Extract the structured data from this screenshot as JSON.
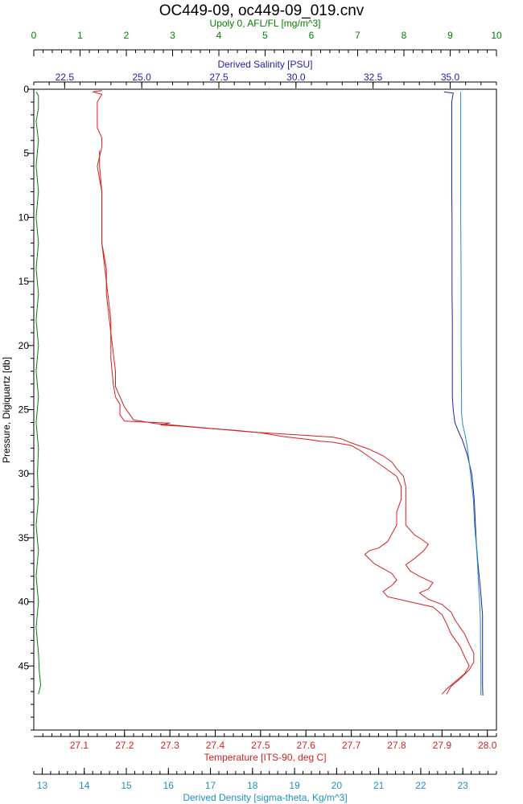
{
  "chart_data": {
    "type": "line",
    "title": "OC449-09, oc449-09_019.cnv",
    "grid": false,
    "legend": "none",
    "y_axis": {
      "label": "Pressure, Digiquartz [db]",
      "range": [
        0,
        50
      ],
      "inverted": true,
      "ticks": [
        "0",
        "5",
        "10",
        "15",
        "20",
        "25",
        "30",
        "35",
        "40",
        "45"
      ],
      "tick_values": [
        0,
        5,
        10,
        15,
        20,
        25,
        30,
        35,
        40,
        45
      ],
      "color": "#000000"
    },
    "x_axes": [
      {
        "id": "fluor",
        "label": "Upoly 0, AFL/FL [mg/m^3]",
        "position": "top-1",
        "range": [
          0,
          10
        ],
        "ticks": [
          "0",
          "1",
          "2",
          "3",
          "4",
          "5",
          "6",
          "7",
          "8",
          "9",
          "10"
        ],
        "tick_values": [
          0,
          1,
          2,
          3,
          4,
          5,
          6,
          7,
          8,
          9,
          10
        ],
        "color": "#008000"
      },
      {
        "id": "salinity",
        "label": "Derived Salinity [PSU]",
        "position": "top-2",
        "range": [
          21.5,
          36.5
        ],
        "ticks": [
          "22.5",
          "25.0",
          "27.5",
          "30.0",
          "32.5",
          "35.0"
        ],
        "tick_values": [
          22.5,
          25.0,
          27.5,
          30.0,
          32.5,
          35.0
        ],
        "color": "#1f1fa8"
      },
      {
        "id": "temperature",
        "label": "Temperature [ITS-90, deg C]",
        "position": "bottom-1",
        "range": [
          27.0,
          28.02
        ],
        "ticks": [
          "27.1",
          "27.2",
          "27.3",
          "27.4",
          "27.5",
          "27.6",
          "27.7",
          "27.8",
          "27.9",
          "28.0"
        ],
        "tick_values": [
          27.1,
          27.2,
          27.3,
          27.4,
          27.5,
          27.6,
          27.7,
          27.8,
          27.9,
          28.0
        ],
        "color": "#d42020"
      },
      {
        "id": "density",
        "label": "Derived Density [sigma-theta, Kg/m^3]",
        "position": "bottom-2",
        "range": [
          12.8,
          23.8
        ],
        "ticks": [
          "13",
          "14",
          "15",
          "16",
          "17",
          "18",
          "19",
          "20",
          "21",
          "22",
          "23"
        ],
        "tick_values": [
          13,
          14,
          15,
          16,
          17,
          18,
          19,
          20,
          21,
          22,
          23
        ],
        "color": "#2090c0"
      }
    ],
    "series": [
      {
        "axis": "temperature",
        "color": "#d42020",
        "points": [
          [
            27.15,
            0.1
          ],
          [
            27.13,
            0.2
          ],
          [
            27.15,
            0.4
          ],
          [
            27.14,
            1
          ],
          [
            27.14,
            2
          ],
          [
            27.14,
            3
          ],
          [
            27.15,
            3.8
          ],
          [
            27.15,
            4.5
          ],
          [
            27.14,
            6
          ],
          [
            27.15,
            8
          ],
          [
            27.15,
            10
          ],
          [
            27.15,
            12
          ],
          [
            27.16,
            15
          ],
          [
            27.17,
            18
          ],
          [
            27.17,
            21
          ],
          [
            27.175,
            23
          ],
          [
            27.18,
            24
          ],
          [
            27.19,
            24.6
          ],
          [
            27.19,
            25.4
          ],
          [
            27.2,
            25.9
          ],
          [
            27.23,
            25.95
          ],
          [
            27.26,
            26.0
          ],
          [
            27.3,
            26.05
          ],
          [
            27.28,
            26.2
          ],
          [
            27.33,
            26.3
          ],
          [
            27.38,
            26.45
          ],
          [
            27.44,
            26.6
          ],
          [
            27.5,
            26.8
          ],
          [
            27.55,
            27.1
          ],
          [
            27.6,
            27.3
          ],
          [
            27.63,
            27.45
          ],
          [
            27.66,
            27.55
          ],
          [
            27.7,
            27.8
          ],
          [
            27.72,
            28.2
          ],
          [
            27.74,
            28.7
          ],
          [
            27.76,
            29.2
          ],
          [
            27.78,
            29.7
          ],
          [
            27.8,
            30.2
          ],
          [
            27.81,
            31
          ],
          [
            27.81,
            32
          ],
          [
            27.8,
            33
          ],
          [
            27.8,
            34
          ],
          [
            27.78,
            35.3
          ],
          [
            27.76,
            35.8
          ],
          [
            27.74,
            36
          ],
          [
            27.73,
            36.3
          ],
          [
            27.75,
            37
          ],
          [
            27.79,
            37.8
          ],
          [
            27.8,
            38.3
          ],
          [
            27.79,
            38.7
          ],
          [
            27.77,
            39.2
          ],
          [
            27.78,
            39.6
          ],
          [
            27.83,
            40
          ],
          [
            27.88,
            40.4
          ],
          [
            27.9,
            41
          ],
          [
            27.91,
            41.7
          ],
          [
            27.92,
            42.5
          ],
          [
            27.94,
            43.5
          ],
          [
            27.95,
            44.3
          ],
          [
            27.96,
            45
          ],
          [
            27.95,
            45.6
          ],
          [
            27.93,
            46.2
          ],
          [
            27.91,
            46.8
          ],
          [
            27.9,
            47.2
          ]
        ]
      },
      {
        "axis": "temperature",
        "color": "#d42020",
        "points": [
          [
            27.145,
            4.8
          ],
          [
            27.145,
            6
          ],
          [
            27.15,
            8
          ],
          [
            27.15,
            10
          ],
          [
            27.15,
            12
          ],
          [
            27.16,
            14
          ],
          [
            27.16,
            16
          ],
          [
            27.17,
            19
          ],
          [
            27.18,
            22
          ],
          [
            27.18,
            23.2
          ],
          [
            27.19,
            24
          ],
          [
            27.2,
            24.8
          ],
          [
            27.21,
            25.3
          ],
          [
            27.22,
            25.8
          ],
          [
            27.27,
            26.1
          ],
          [
            27.32,
            26.25
          ],
          [
            27.4,
            26.5
          ],
          [
            27.48,
            26.75
          ],
          [
            27.55,
            26.9
          ],
          [
            27.62,
            27.05
          ],
          [
            27.66,
            27.15
          ],
          [
            27.68,
            27.3
          ],
          [
            27.7,
            27.6
          ],
          [
            27.74,
            28.1
          ],
          [
            27.77,
            28.6
          ],
          [
            27.79,
            29.1
          ],
          [
            27.8,
            29.6
          ],
          [
            27.815,
            30.2
          ],
          [
            27.82,
            31
          ],
          [
            27.82,
            32
          ],
          [
            27.82,
            33
          ],
          [
            27.82,
            34
          ],
          [
            27.84,
            34.8
          ],
          [
            27.85,
            35
          ],
          [
            27.87,
            35.5
          ],
          [
            27.86,
            36
          ],
          [
            27.84,
            36.6
          ],
          [
            27.82,
            37.1
          ],
          [
            27.83,
            37.6
          ],
          [
            27.85,
            38
          ],
          [
            27.88,
            38.5
          ],
          [
            27.87,
            39
          ],
          [
            27.85,
            39.3
          ],
          [
            27.87,
            39.8
          ],
          [
            27.9,
            40.2
          ],
          [
            27.92,
            40.8
          ],
          [
            27.93,
            41.5
          ],
          [
            27.95,
            42.5
          ],
          [
            27.96,
            43.3
          ],
          [
            27.97,
            44
          ],
          [
            27.97,
            44.7
          ],
          [
            27.96,
            45.3
          ],
          [
            27.94,
            46
          ],
          [
            27.92,
            46.6
          ],
          [
            27.91,
            47.2
          ]
        ]
      },
      {
        "axis": "salinity",
        "color": "#1f1fa8",
        "points": [
          [
            34.8,
            0.2
          ],
          [
            35.1,
            0.3
          ],
          [
            35.05,
            1
          ],
          [
            35.05,
            3
          ],
          [
            35.05,
            5
          ],
          [
            35.05,
            8
          ],
          [
            35.06,
            10
          ],
          [
            35.06,
            12
          ],
          [
            35.06,
            14
          ],
          [
            35.06,
            16
          ],
          [
            35.07,
            18
          ],
          [
            35.07,
            20
          ],
          [
            35.07,
            22
          ],
          [
            35.07,
            24
          ],
          [
            35.1,
            25
          ],
          [
            35.15,
            26
          ],
          [
            35.25,
            26.6
          ],
          [
            35.4,
            27.4
          ],
          [
            35.55,
            28.5
          ],
          [
            35.7,
            30
          ],
          [
            35.78,
            32
          ],
          [
            35.82,
            34
          ],
          [
            35.85,
            35.5
          ],
          [
            35.9,
            37
          ],
          [
            35.98,
            39
          ],
          [
            36.05,
            41
          ],
          [
            36.05,
            43
          ],
          [
            36.05,
            45
          ],
          [
            36.05,
            46.5
          ],
          [
            36.06,
            47.3
          ]
        ]
      },
      {
        "axis": "density",
        "color": "#2090c0",
        "points": [
          [
            22.95,
            0.2
          ],
          [
            22.95,
            1
          ],
          [
            22.95,
            5
          ],
          [
            22.95,
            10
          ],
          [
            22.96,
            15
          ],
          [
            22.96,
            20
          ],
          [
            22.97,
            24
          ],
          [
            22.97,
            25.3
          ],
          [
            23.0,
            26.2
          ],
          [
            23.05,
            26.9
          ],
          [
            23.1,
            27.8
          ],
          [
            23.15,
            29
          ],
          [
            23.2,
            30.5
          ],
          [
            23.25,
            32
          ],
          [
            23.28,
            34
          ],
          [
            23.32,
            35.5
          ],
          [
            23.35,
            37
          ],
          [
            23.37,
            38.5
          ],
          [
            23.4,
            40
          ],
          [
            23.42,
            41.5
          ],
          [
            23.42,
            43
          ],
          [
            23.43,
            45
          ],
          [
            23.43,
            46.5
          ],
          [
            23.43,
            47.3
          ]
        ]
      },
      {
        "axis": "fluor",
        "color": "#008000",
        "points": [
          [
            0.05,
            0.2
          ],
          [
            0.1,
            0.5
          ],
          [
            0.1,
            1.5
          ],
          [
            0.05,
            2.5
          ],
          [
            0.1,
            4
          ],
          [
            0.05,
            6
          ],
          [
            0.1,
            8
          ],
          [
            0.05,
            10
          ],
          [
            0.1,
            12
          ],
          [
            0.05,
            14
          ],
          [
            0.1,
            16
          ],
          [
            0.05,
            18
          ],
          [
            0.1,
            20
          ],
          [
            0.05,
            22
          ],
          [
            0.1,
            24
          ],
          [
            0.05,
            26
          ],
          [
            0.1,
            28
          ],
          [
            0.08,
            30
          ],
          [
            0.1,
            32
          ],
          [
            0.05,
            34
          ],
          [
            0.1,
            36
          ],
          [
            0.05,
            38
          ],
          [
            0.1,
            40
          ],
          [
            0.05,
            42
          ],
          [
            0.1,
            44
          ],
          [
            0.12,
            45.5
          ],
          [
            0.15,
            46.5
          ],
          [
            0.1,
            47.2
          ]
        ]
      }
    ]
  }
}
